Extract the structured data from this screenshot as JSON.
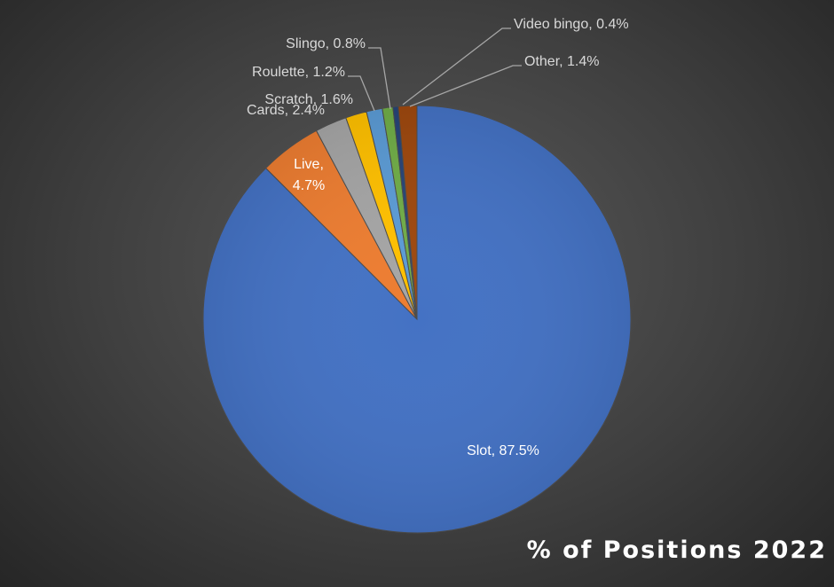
{
  "chart_data": {
    "type": "pie",
    "title": "% of Positions 2022",
    "slices": [
      {
        "name": "Slot",
        "value": 87.5,
        "label": "Slot, 87.5%",
        "color": "#4472c4"
      },
      {
        "name": "Live",
        "value": 4.7,
        "label_lines": [
          "Live,",
          "4.7%"
        ],
        "color": "#ed7d31"
      },
      {
        "name": "Cards",
        "value": 2.4,
        "label": "Cards, 2.4%",
        "color": "#a5a5a5"
      },
      {
        "name": "Scratch",
        "value": 1.6,
        "label": "Scratch, 1.6%",
        "color": "#ffc000"
      },
      {
        "name": "Roulette",
        "value": 1.2,
        "label": "Roulette, 1.2%",
        "color": "#5b9bd5"
      },
      {
        "name": "Slingo",
        "value": 0.8,
        "label": "Slingo, 0.8%",
        "color": "#70ad47"
      },
      {
        "name": "Video bingo",
        "value": 0.4,
        "label": "Video bingo, 0.4%",
        "color": "#264478"
      },
      {
        "name": "Other",
        "value": 1.4,
        "label": "Other, 1.4%",
        "color": "#9e480e"
      }
    ],
    "start_angle_deg": 0,
    "direction": "clockwise",
    "legend": "none",
    "label_color": "#d9d9d9",
    "inside_label_color": "#ffffff"
  }
}
